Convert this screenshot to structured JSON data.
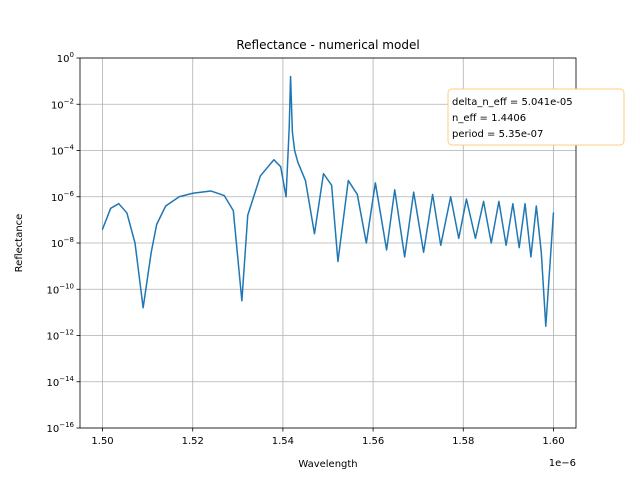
{
  "chart_data": {
    "type": "line",
    "title": "Reflectance - numerical model",
    "xlabel": "Wavelength",
    "ylabel": "Reflectance",
    "x_offset_label": "1e−6",
    "xlim": [
      1.495,
      1.605
    ],
    "ylim": [
      1e-16,
      1
    ],
    "yscale": "log",
    "grid": true,
    "x_ticks": [
      {
        "value": 1.5,
        "label": "1.50"
      },
      {
        "value": 1.52,
        "label": "1.52"
      },
      {
        "value": 1.54,
        "label": "1.54"
      },
      {
        "value": 1.56,
        "label": "1.56"
      },
      {
        "value": 1.58,
        "label": "1.58"
      },
      {
        "value": 1.6,
        "label": "1.60"
      }
    ],
    "y_ticks": [
      {
        "exp": 0,
        "mantissa": "10",
        "sup": "0"
      },
      {
        "exp": -2,
        "mantissa": "10",
        "sup": "−2"
      },
      {
        "exp": -4,
        "mantissa": "10",
        "sup": "−4"
      },
      {
        "exp": -6,
        "mantissa": "10",
        "sup": "−6"
      },
      {
        "exp": -8,
        "mantissa": "10",
        "sup": "−8"
      },
      {
        "exp": -10,
        "mantissa": "10",
        "sup": "−10"
      },
      {
        "exp": -12,
        "mantissa": "10",
        "sup": "−12"
      },
      {
        "exp": -14,
        "mantissa": "10",
        "sup": "−14"
      },
      {
        "exp": -16,
        "mantissa": "10",
        "sup": "−16"
      }
    ],
    "annotation": {
      "lines": [
        "delta_n_eff = 5.041e-05",
        "n_eff = 1.4406",
        "period = 5.35e-07"
      ],
      "placement": "top-right"
    },
    "series": [
      {
        "color": "#1f77b4",
        "x": [
          1.5,
          1.5018,
          1.5036,
          1.5054,
          1.5072,
          1.509,
          1.5108,
          1.512,
          1.514,
          1.517,
          1.52,
          1.524,
          1.527,
          1.529,
          1.5309,
          1.5322,
          1.535,
          1.538,
          1.5395,
          1.5407,
          1.5414,
          1.5417,
          1.5419,
          1.5421,
          1.5426,
          1.5433,
          1.545,
          1.547,
          1.549,
          1.5508,
          1.5522,
          1.5545,
          1.5565,
          1.5585,
          1.5605,
          1.563,
          1.5648,
          1.567,
          1.569,
          1.5712,
          1.5732,
          1.575,
          1.5772,
          1.579,
          1.5807,
          1.5827,
          1.5845,
          1.5862,
          1.5879,
          1.5895,
          1.591,
          1.5924,
          1.5937,
          1.595,
          1.5962,
          1.5973,
          1.5983,
          1.6
        ],
        "y": [
          -7.4,
          -6.5,
          -6.3,
          -6.7,
          -8.0,
          -10.8,
          -8.4,
          -7.2,
          -6.4,
          -6.0,
          -5.85,
          -5.75,
          -5.95,
          -6.6,
          -10.5,
          -6.8,
          -5.1,
          -4.4,
          -4.7,
          -6.0,
          -3.0,
          -0.8,
          -2.0,
          -3.2,
          -4.0,
          -4.5,
          -5.3,
          -7.6,
          -5.0,
          -5.5,
          -8.8,
          -5.3,
          -5.9,
          -8.0,
          -5.4,
          -8.3,
          -5.7,
          -8.6,
          -5.8,
          -8.4,
          -5.9,
          -8.1,
          -6.0,
          -7.8,
          -6.1,
          -7.8,
          -6.2,
          -8.0,
          -6.2,
          -8.1,
          -6.3,
          -8.2,
          -6.3,
          -8.6,
          -6.4,
          -8.4,
          -11.6,
          -6.7
        ]
      }
    ]
  }
}
